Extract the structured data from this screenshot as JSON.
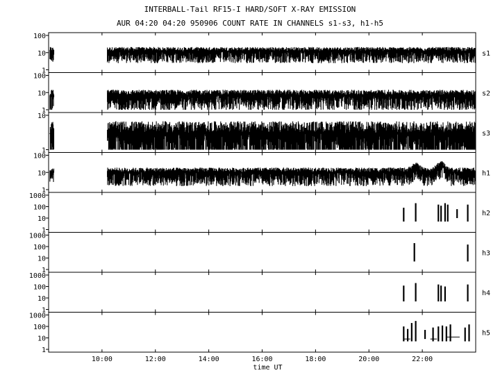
{
  "title": "INTERBALL-Tail RF15-I HARD/SOFT X-RAY EMISSION",
  "subtitle": "AUR 04:20 04:20 950906  COUNT RATE IN CHANNELS s1-s3, h1-h5",
  "chart_data": {
    "type": "line",
    "title": "INTERBALL-Tail RF15-I HARD/SOFT X-RAY EMISSION",
    "subtitle": "AUR 04:20 04:20 950906  COUNT RATE IN CHANNELS s1-s3, h1-h5",
    "xlabel": "time UT",
    "xlim": [
      8.0,
      24.0
    ],
    "xticks": [
      10,
      12,
      14,
      16,
      18,
      20,
      22
    ],
    "xtick_labels": [
      "10:00",
      "12:00",
      "14:00",
      "16:00",
      "18:00",
      "20:00",
      "22:00"
    ],
    "yscale": "log",
    "grid": false,
    "panels": [
      {
        "name": "s1",
        "ylim": [
          1,
          100
        ],
        "yticks": [
          1,
          10,
          100
        ],
        "segments": [
          [
            8.05,
            8.2
          ],
          [
            10.2,
            24.0
          ]
        ],
        "level": 12,
        "spread": 0.7
      },
      {
        "name": "s2",
        "ylim": [
          1,
          100
        ],
        "yticks": [
          1,
          10,
          100
        ],
        "segments": [
          [
            8.05,
            8.2
          ],
          [
            10.2,
            24.0
          ]
        ],
        "level": 7,
        "spread": 0.9
      },
      {
        "name": "s3",
        "ylim": [
          1,
          10
        ],
        "yticks": [
          1,
          10
        ],
        "segments": [
          [
            8.05,
            8.2
          ],
          [
            10.2,
            24.0
          ]
        ],
        "level": 3,
        "spread": 1.0
      },
      {
        "name": "h1",
        "ylim": [
          1,
          100
        ],
        "yticks": [
          1,
          10,
          100
        ],
        "segments": [
          [
            8.05,
            8.2
          ],
          [
            10.2,
            24.0
          ]
        ],
        "level": 10,
        "spread": 0.8,
        "bumps": [
          [
            21.75,
            20
          ],
          [
            22.7,
            25
          ]
        ]
      },
      {
        "name": "h2",
        "ylim": [
          1,
          1000
        ],
        "yticks": [
          1,
          10,
          100,
          1000
        ],
        "spikes": [
          [
            21.3,
            5,
            80
          ],
          [
            21.75,
            5,
            200
          ],
          [
            22.6,
            5,
            150
          ],
          [
            22.7,
            5,
            120
          ],
          [
            22.85,
            5,
            200
          ],
          [
            22.95,
            5,
            150
          ],
          [
            23.3,
            10,
            60
          ],
          [
            23.7,
            5,
            150
          ]
        ]
      },
      {
        "name": "h3",
        "ylim": [
          1,
          1000
        ],
        "yticks": [
          1,
          10,
          100,
          1000
        ],
        "spikes": [
          [
            21.7,
            5,
            200
          ],
          [
            23.7,
            5,
            150
          ]
        ]
      },
      {
        "name": "h4",
        "ylim": [
          1,
          1000
        ],
        "yticks": [
          1,
          10,
          100,
          1000
        ],
        "spikes": [
          [
            21.3,
            5,
            120
          ],
          [
            21.75,
            5,
            200
          ],
          [
            22.6,
            5,
            150
          ],
          [
            22.7,
            5,
            120
          ],
          [
            22.85,
            5,
            100
          ],
          [
            23.7,
            5,
            150
          ]
        ]
      },
      {
        "name": "h5",
        "ylim": [
          1,
          1000
        ],
        "yticks": [
          1,
          10,
          100,
          1000
        ],
        "spikes": [
          [
            21.3,
            5,
            100
          ],
          [
            21.45,
            5,
            60
          ],
          [
            21.6,
            5,
            200
          ],
          [
            21.75,
            5,
            300
          ],
          [
            22.1,
            8,
            50
          ],
          [
            22.4,
            5,
            80
          ],
          [
            22.6,
            5,
            100
          ],
          [
            22.75,
            5,
            120
          ],
          [
            22.9,
            5,
            100
          ],
          [
            23.05,
            5,
            150
          ],
          [
            23.6,
            5,
            80
          ],
          [
            23.75,
            5,
            150
          ]
        ],
        "flat": [
          [
            21.3,
            21.55,
            8
          ],
          [
            22.3,
            22.55,
            8
          ],
          [
            22.9,
            23.4,
            12
          ]
        ]
      }
    ]
  }
}
